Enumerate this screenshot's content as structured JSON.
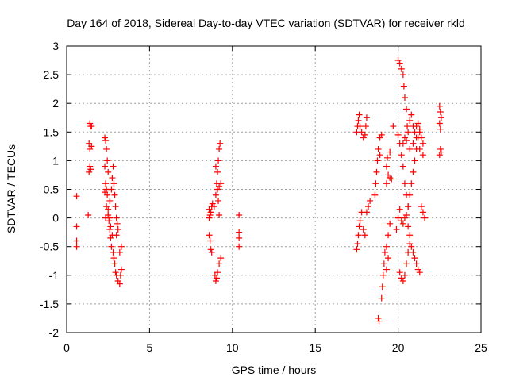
{
  "chart_data": {
    "type": "scatter",
    "title": "Day 164 of 2018, Sidereal Day-to-day VTEC variation (SDTVAR) for receiver rkld",
    "xlabel": "GPS time / hours",
    "ylabel": "SDTVAR / TECUs",
    "xlim": [
      0,
      25
    ],
    "ylim": [
      -2,
      3
    ],
    "xticks": [
      0,
      5,
      10,
      15,
      20,
      25
    ],
    "yticks": [
      -2,
      -1.5,
      -1,
      -0.5,
      0,
      0.5,
      1,
      1.5,
      2,
      2.5,
      3
    ],
    "xtick_labels": [
      "0",
      "5",
      "10",
      "15",
      "20",
      "25"
    ],
    "ytick_labels": [
      "-2",
      "-1.5",
      "-1",
      "-0.5",
      "0",
      "0.5",
      "1",
      "1.5",
      "2",
      "2.5",
      "3"
    ],
    "grid": true,
    "marker": "+",
    "color": "#ff0000",
    "series": [
      {
        "name": "SDTVAR",
        "points": [
          [
            0.6,
            0.38
          ],
          [
            0.6,
            -0.15
          ],
          [
            0.6,
            -0.4
          ],
          [
            0.6,
            -0.5
          ],
          [
            1.3,
            0.05
          ],
          [
            1.35,
            0.8
          ],
          [
            1.4,
            0.9
          ],
          [
            1.35,
            1.3
          ],
          [
            1.4,
            1.2
          ],
          [
            1.45,
            1.6
          ],
          [
            1.4,
            1.65
          ],
          [
            1.5,
            1.6
          ],
          [
            1.45,
            0.85
          ],
          [
            1.5,
            1.25
          ],
          [
            2.3,
            1.4
          ],
          [
            2.35,
            1.35
          ],
          [
            2.4,
            1.2
          ],
          [
            2.45,
            1.0
          ],
          [
            2.3,
            0.9
          ],
          [
            2.5,
            0.8
          ],
          [
            2.35,
            0.6
          ],
          [
            2.4,
            0.5
          ],
          [
            2.3,
            0.45
          ],
          [
            2.45,
            0.4
          ],
          [
            2.4,
            0.2
          ],
          [
            2.5,
            0.05
          ],
          [
            2.35,
            0.0
          ],
          [
            2.55,
            -0.05
          ],
          [
            2.6,
            -0.2
          ],
          [
            2.65,
            -0.35
          ],
          [
            2.7,
            -0.5
          ],
          [
            2.8,
            -0.6
          ],
          [
            2.85,
            -0.7
          ],
          [
            2.9,
            -0.8
          ],
          [
            2.95,
            -0.95
          ],
          [
            3.0,
            -1.0
          ],
          [
            3.1,
            -1.1
          ],
          [
            3.2,
            -1.15
          ],
          [
            3.25,
            -1.0
          ],
          [
            3.3,
            -0.9
          ],
          [
            3.3,
            -0.5
          ],
          [
            3.2,
            -0.6
          ],
          [
            3.0,
            -0.3
          ],
          [
            2.6,
            0.3
          ],
          [
            2.7,
            0.5
          ],
          [
            2.75,
            0.7
          ],
          [
            2.8,
            0.9
          ],
          [
            2.85,
            0.6
          ],
          [
            2.9,
            0.4
          ],
          [
            2.95,
            0.2
          ],
          [
            3.0,
            0.0
          ],
          [
            3.05,
            -0.1
          ],
          [
            3.1,
            -0.2
          ],
          [
            2.5,
            0.15
          ],
          [
            2.6,
            0.0
          ],
          [
            2.65,
            -0.15
          ],
          [
            2.75,
            -0.3
          ],
          [
            8.6,
            -0.3
          ],
          [
            8.65,
            -0.4
          ],
          [
            8.7,
            -0.55
          ],
          [
            8.75,
            -0.6
          ],
          [
            8.6,
            0.0
          ],
          [
            8.7,
            0.1
          ],
          [
            8.75,
            0.2
          ],
          [
            8.8,
            0.25
          ],
          [
            8.6,
            0.15
          ],
          [
            8.65,
            0.05
          ],
          [
            8.9,
            0.2
          ],
          [
            9.0,
            0.4
          ],
          [
            9.05,
            0.6
          ],
          [
            9.1,
            0.8
          ],
          [
            9.15,
            1.0
          ],
          [
            9.2,
            1.2
          ],
          [
            9.25,
            1.3
          ],
          [
            9.0,
            0.9
          ],
          [
            9.1,
            0.5
          ],
          [
            9.15,
            0.3
          ],
          [
            9.2,
            0.55
          ],
          [
            9.3,
            0.6
          ],
          [
            9.2,
            0.05
          ],
          [
            8.95,
            -1.0
          ],
          [
            9.0,
            -1.1
          ],
          [
            9.05,
            -1.05
          ],
          [
            9.1,
            -0.95
          ],
          [
            9.2,
            -0.8
          ],
          [
            9.3,
            -0.7
          ],
          [
            10.4,
            0.05
          ],
          [
            10.4,
            -0.25
          ],
          [
            10.4,
            -0.35
          ],
          [
            10.4,
            -0.5
          ],
          [
            17.5,
            -0.55
          ],
          [
            17.55,
            -0.45
          ],
          [
            17.6,
            -0.3
          ],
          [
            17.65,
            -0.15
          ],
          [
            17.7,
            -0.05
          ],
          [
            17.8,
            0.1
          ],
          [
            17.9,
            -0.2
          ],
          [
            18.0,
            -0.3
          ],
          [
            18.1,
            0.1
          ],
          [
            18.2,
            0.2
          ],
          [
            18.3,
            0.3
          ],
          [
            17.5,
            1.5
          ],
          [
            17.55,
            1.6
          ],
          [
            17.6,
            1.7
          ],
          [
            17.65,
            1.8
          ],
          [
            17.7,
            1.6
          ],
          [
            17.8,
            1.5
          ],
          [
            17.9,
            1.4
          ],
          [
            18.0,
            1.45
          ],
          [
            18.05,
            1.6
          ],
          [
            18.1,
            1.75
          ],
          [
            18.6,
            0.4
          ],
          [
            18.65,
            0.6
          ],
          [
            18.7,
            0.8
          ],
          [
            18.75,
            1.0
          ],
          [
            18.8,
            1.2
          ],
          [
            18.9,
            1.4
          ],
          [
            19.0,
            1.45
          ],
          [
            18.9,
            1.1
          ],
          [
            18.8,
            -1.75
          ],
          [
            18.85,
            -1.8
          ],
          [
            19.0,
            -1.4
          ],
          [
            19.05,
            -1.2
          ],
          [
            19.1,
            -1.0
          ],
          [
            19.15,
            -0.8
          ],
          [
            19.2,
            -0.6
          ],
          [
            19.3,
            -0.5
          ],
          [
            19.4,
            -0.3
          ],
          [
            19.5,
            -0.1
          ],
          [
            19.3,
            -0.9
          ],
          [
            19.4,
            -0.7
          ],
          [
            19.3,
            0.6
          ],
          [
            19.4,
            0.75
          ],
          [
            19.5,
            0.7
          ],
          [
            19.6,
            0.68
          ],
          [
            19.3,
            0.9
          ],
          [
            19.35,
            1.05
          ],
          [
            19.5,
            1.15
          ],
          [
            19.7,
            1.6
          ],
          [
            19.9,
            -0.2
          ],
          [
            20.0,
            0.0
          ],
          [
            20.1,
            0.15
          ],
          [
            20.2,
            -0.05
          ],
          [
            20.3,
            -0.1
          ],
          [
            20.4,
            0.0
          ],
          [
            20.5,
            0.05
          ],
          [
            20.6,
            0.2
          ],
          [
            20.7,
            0.4
          ],
          [
            20.8,
            0.6
          ],
          [
            20.9,
            0.8
          ],
          [
            21.0,
            1.0
          ],
          [
            21.1,
            1.2
          ],
          [
            21.2,
            1.4
          ],
          [
            21.3,
            1.5
          ],
          [
            20.6,
            -0.15
          ],
          [
            20.7,
            -0.3
          ],
          [
            20.8,
            -0.5
          ],
          [
            20.9,
            -0.6
          ],
          [
            21.0,
            -0.7
          ],
          [
            21.1,
            -0.8
          ],
          [
            21.2,
            -0.9
          ],
          [
            21.3,
            -0.95
          ],
          [
            20.1,
            -0.95
          ],
          [
            20.2,
            -1.05
          ],
          [
            20.3,
            -1.1
          ],
          [
            20.4,
            -1.0
          ],
          [
            20.5,
            -0.8
          ],
          [
            20.6,
            -0.6
          ],
          [
            20.7,
            -0.45
          ],
          [
            20.0,
            2.75
          ],
          [
            20.1,
            2.7
          ],
          [
            20.2,
            2.6
          ],
          [
            20.3,
            2.5
          ],
          [
            20.35,
            2.3
          ],
          [
            20.4,
            2.1
          ],
          [
            20.5,
            1.9
          ],
          [
            20.55,
            1.6
          ],
          [
            20.0,
            1.45
          ],
          [
            20.1,
            1.3
          ],
          [
            20.2,
            1.1
          ],
          [
            20.3,
            0.9
          ],
          [
            20.4,
            0.6
          ],
          [
            20.5,
            0.4
          ],
          [
            20.6,
            0.2
          ],
          [
            20.6,
            1.5
          ],
          [
            20.7,
            1.7
          ],
          [
            20.8,
            1.8
          ],
          [
            20.9,
            1.6
          ],
          [
            21.0,
            1.5
          ],
          [
            21.1,
            1.6
          ],
          [
            21.2,
            1.65
          ],
          [
            21.3,
            1.55
          ],
          [
            21.4,
            1.4
          ],
          [
            21.5,
            1.3
          ],
          [
            20.3,
            1.3
          ],
          [
            20.4,
            1.4
          ],
          [
            20.5,
            1.35
          ],
          [
            20.7,
            1.2
          ],
          [
            20.9,
            1.3
          ],
          [
            21.1,
            1.4
          ],
          [
            21.3,
            1.2
          ],
          [
            21.5,
            1.1
          ],
          [
            21.4,
            0.2
          ],
          [
            21.5,
            0.1
          ],
          [
            21.6,
            0.0
          ],
          [
            22.5,
            1.95
          ],
          [
            22.55,
            1.85
          ],
          [
            22.6,
            1.75
          ],
          [
            22.5,
            1.65
          ],
          [
            22.55,
            1.55
          ],
          [
            22.5,
            1.1
          ],
          [
            22.55,
            1.2
          ],
          [
            22.6,
            1.15
          ]
        ]
      }
    ]
  }
}
